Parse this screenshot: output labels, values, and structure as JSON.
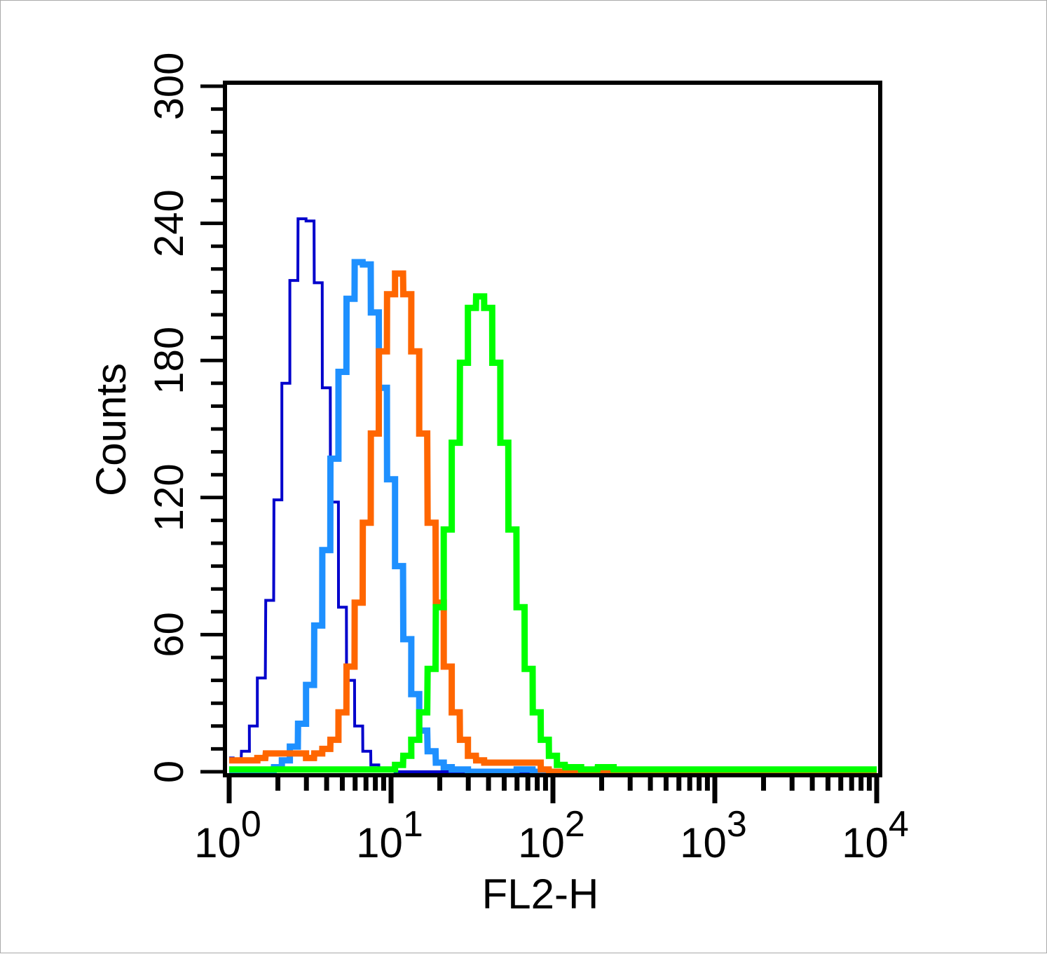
{
  "chart_data": {
    "type": "histogram",
    "title": "",
    "xlabel": "FL2-H",
    "ylabel": "Counts",
    "xscale": "log",
    "xlim": [
      1,
      10000
    ],
    "ylim": [
      0,
      300
    ],
    "yticks": [
      "0",
      "60",
      "120",
      "180",
      "240",
      "300"
    ],
    "xticks": [
      {
        "base": "10",
        "exp": "0"
      },
      {
        "base": "10",
        "exp": "1"
      },
      {
        "base": "10",
        "exp": "2"
      },
      {
        "base": "10",
        "exp": "3"
      },
      {
        "base": "10",
        "exp": "4"
      }
    ],
    "grid": false,
    "legend": "none",
    "x": [
      1.0,
      1.12,
      1.26,
      1.41,
      1.58,
      1.78,
      2.0,
      2.24,
      2.51,
      2.82,
      3.16,
      3.55,
      3.98,
      4.47,
      5.01,
      5.62,
      6.31,
      7.08,
      7.94,
      8.91,
      10.0,
      11.2,
      12.6,
      14.1,
      15.8,
      17.8,
      20.0,
      22.4,
      25.1,
      28.2,
      31.6,
      35.5,
      39.8,
      44.7,
      50.1,
      56.2,
      63.1,
      70.8,
      79.4,
      89.1,
      100,
      112,
      126,
      141,
      158,
      178,
      200,
      224,
      251,
      282,
      316
    ],
    "series": [
      {
        "color": "#0000cc",
        "values": [
          6,
          5,
          9,
          20,
          41,
          75,
          119,
          170,
          215,
          242,
          241,
          214,
          168,
          118,
          72,
          40,
          20,
          9,
          3,
          1,
          1,
          0,
          0,
          0,
          0,
          0,
          0,
          0,
          0,
          0,
          0,
          0,
          0,
          0,
          0,
          0,
          0,
          0,
          0,
          0,
          0,
          0,
          0,
          0,
          0,
          0,
          0,
          0,
          0,
          0,
          0
        ]
      },
      {
        "color": "#1e90ff",
        "values": [
          0,
          0,
          0,
          0,
          0,
          0,
          2,
          5,
          11,
          21,
          38,
          64,
          97,
          137,
          175,
          207,
          223,
          222,
          201,
          168,
          128,
          90,
          58,
          34,
          18,
          9,
          4,
          2,
          1,
          1,
          0,
          0,
          0,
          0,
          0,
          0,
          1,
          1,
          0,
          0,
          0,
          0,
          0,
          0,
          0,
          0,
          0,
          0,
          0,
          0,
          0
        ]
      },
      {
        "color": "#ff6600",
        "values": [
          5,
          5,
          5,
          5,
          6,
          8,
          8,
          8,
          8,
          8,
          6,
          8,
          10,
          14,
          26,
          46,
          74,
          109,
          148,
          184,
          209,
          218,
          209,
          184,
          148,
          109,
          74,
          46,
          26,
          14,
          7,
          5,
          4,
          4,
          4,
          4,
          4,
          4,
          4,
          1,
          0,
          0,
          0,
          0,
          0,
          0,
          0,
          0,
          0,
          0,
          0
        ]
      },
      {
        "color": "#00ff00",
        "values": [
          1,
          1,
          1,
          1,
          1,
          1,
          1,
          1,
          1,
          1,
          1,
          1,
          1,
          1,
          1,
          1,
          1,
          1,
          1,
          1,
          1,
          3,
          7,
          14,
          26,
          45,
          72,
          106,
          144,
          179,
          203,
          208,
          203,
          179,
          144,
          106,
          72,
          45,
          26,
          14,
          7,
          3,
          2,
          2,
          1,
          1,
          2,
          2,
          1,
          1,
          1
        ]
      }
    ]
  }
}
